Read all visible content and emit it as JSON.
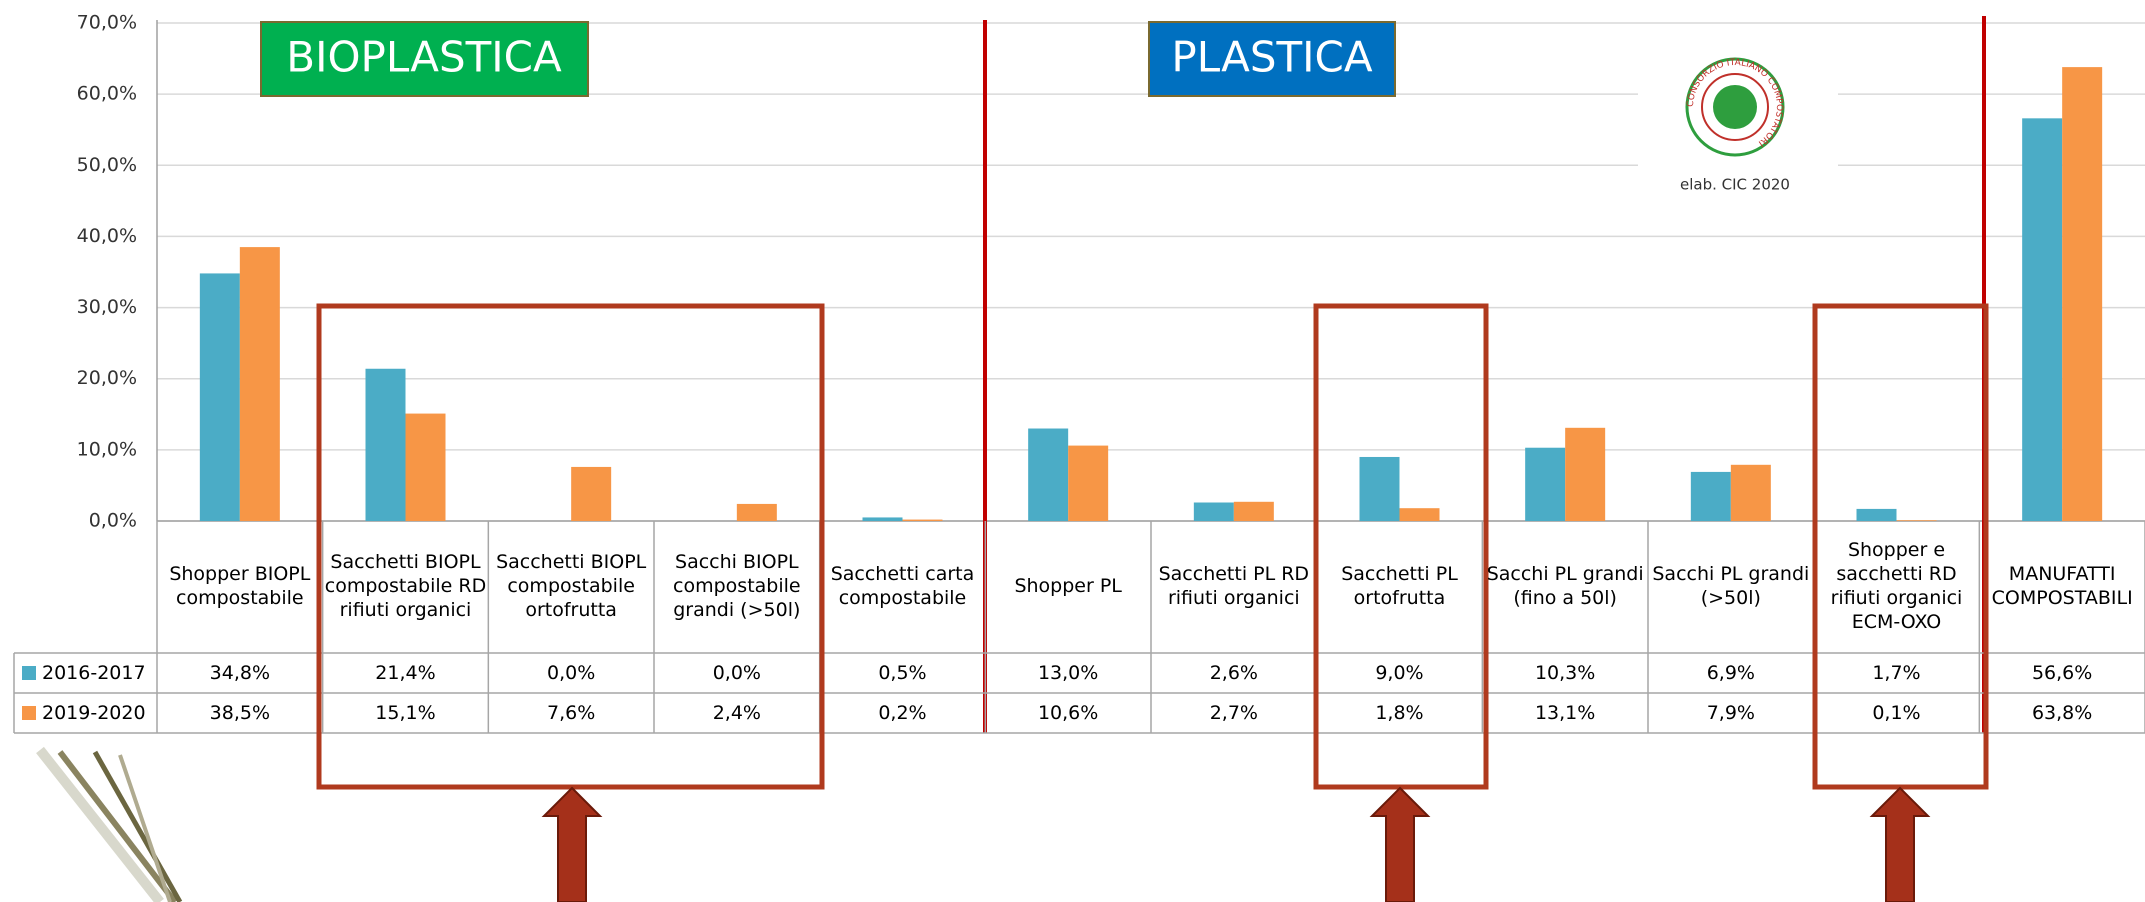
{
  "chart_data": {
    "type": "bar",
    "categories": [
      "Shopper BIOPL compostabile",
      "Sacchetti BIOPL compostabile RD rifiuti organici",
      "Sacchetti BIOPL compostabile ortofrutta",
      "Sacchi BIOPL compostabile grandi (>50l)",
      "Sacchetti carta compostabile",
      "Shopper PL",
      "Sacchetti PL RD rifiuti organici",
      "Sacchetti PL ortofrutta",
      "Sacchi PL grandi (fino a 50l)",
      "Sacchi PL grandi (>50l)",
      "Shopper e sacchetti RD rifiuti organici ECM-OXO",
      "MANUFATTI COMPOSTABILI"
    ],
    "series": [
      {
        "name": "2016-2017",
        "color": "#4bacc6",
        "values": [
          34.8,
          21.4,
          0.0,
          0.0,
          0.5,
          13.0,
          2.6,
          9.0,
          10.3,
          6.9,
          1.7,
          56.6
        ],
        "value_labels": [
          "34,8%",
          "21,4%",
          "0,0%",
          "0,0%",
          "0,5%",
          "13,0%",
          "2,6%",
          "9,0%",
          "10,3%",
          "6,9%",
          "1,7%",
          "56,6%"
        ]
      },
      {
        "name": "2019-2020",
        "color": "#f79646",
        "values": [
          38.5,
          15.1,
          7.6,
          2.4,
          0.2,
          10.6,
          2.7,
          1.8,
          13.1,
          7.9,
          0.1,
          63.8
        ],
        "value_labels": [
          "38,5%",
          "15,1%",
          "7,6%",
          "2,4%",
          "0,2%",
          "10,6%",
          "2,7%",
          "1,8%",
          "13,1%",
          "7,9%",
          "0,1%",
          "63,8%"
        ]
      }
    ],
    "ylim": [
      0,
      70
    ],
    "yticks": [
      {
        "value": 0,
        "label": "0,0%"
      },
      {
        "value": 10,
        "label": "10,0%"
      },
      {
        "value": 20,
        "label": "20,0%"
      },
      {
        "value": 30,
        "label": "30,0%"
      },
      {
        "value": 40,
        "label": "40,0%"
      },
      {
        "value": 50,
        "label": "50,0%"
      },
      {
        "value": 60,
        "label": "60,0%"
      },
      {
        "value": 70,
        "label": "70,0%"
      }
    ],
    "grid": true,
    "annotations": {
      "bioplastica": "BIOPLASTICA",
      "plastica": "PLASTICA",
      "source": "elab. CIC 2020",
      "logo": "CONSORZIO ITALIANO COMPOSTATORI"
    }
  }
}
